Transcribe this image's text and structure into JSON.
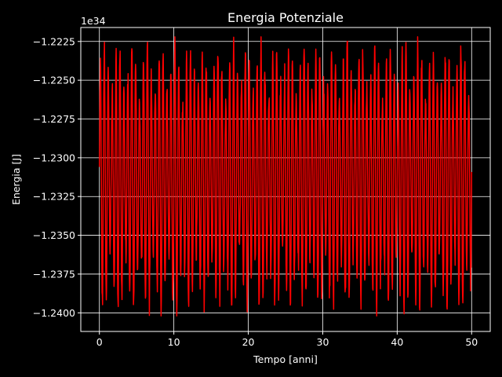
{
  "chart_data": {
    "type": "line",
    "title": "Energia Potenziale",
    "xlabel": "Tempo [anni]",
    "ylabel": "Energia [J]",
    "offset_text": "1e34",
    "xlim": [
      -2.5,
      52.5
    ],
    "ylim": [
      -1.2412,
      -1.2216
    ],
    "xticks": [
      0,
      10,
      20,
      30,
      40,
      50
    ],
    "xtick_labels": [
      "0",
      "10",
      "20",
      "30",
      "40",
      "50"
    ],
    "yticks": [
      -1.2225,
      -1.225,
      -1.2275,
      -1.23,
      -1.2325,
      -1.235,
      -1.2375,
      -1.24
    ],
    "ytick_labels": [
      "−1.2225",
      "−1.2250",
      "−1.2275",
      "−1.2300",
      "−1.2325",
      "−1.2350",
      "−1.2375",
      "−1.2400"
    ],
    "grid": true,
    "background": "#000000",
    "foreground": "#ffffff",
    "series": [
      {
        "color": "#ff0000",
        "x_start": 0,
        "x_end": 50,
        "y_min": -1.2402,
        "y_max": -1.2222,
        "y_center": -1.2312,
        "approx_cycles": 95
      }
    ]
  }
}
